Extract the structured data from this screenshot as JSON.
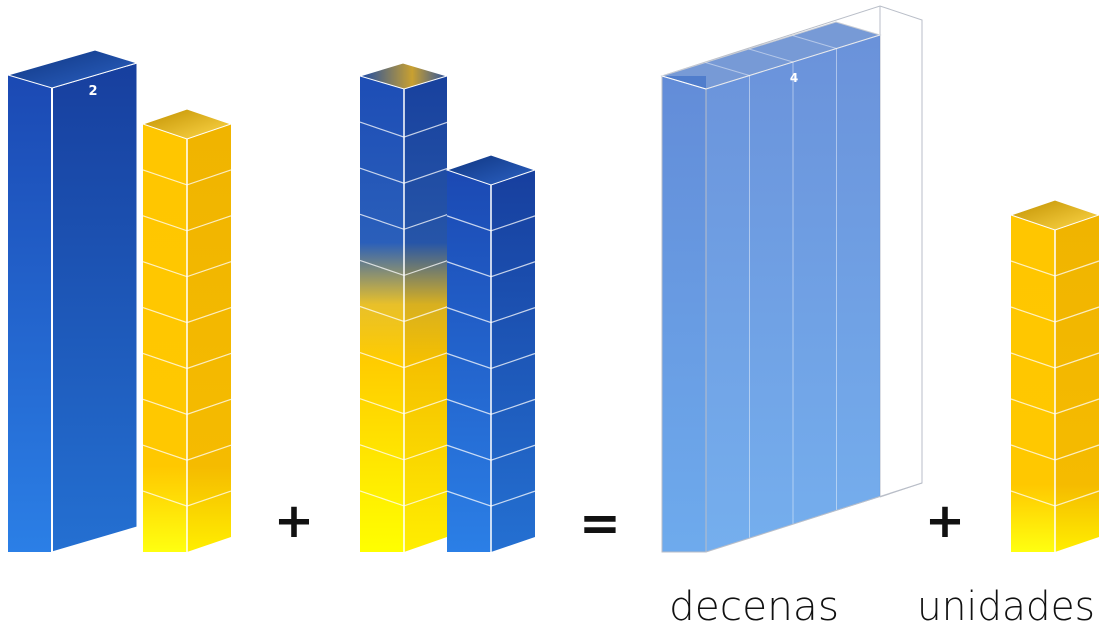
{
  "colors": {
    "blue_top": "#1e4fb8",
    "blue_bottom": "#2a7be0",
    "yellow_top": "#ffc400",
    "yellow_bottom": "#ffff00",
    "translucent_blue": "#5b8fe0",
    "operator": "#111111"
  },
  "addend_1": {
    "ten_rod_label": "2",
    "unit_cubes": 9
  },
  "addend_2": {
    "mixed_column_cubes": 10,
    "blue_column_cubes": 8
  },
  "operators": {
    "plus_1": "+",
    "equals": "=",
    "plus_2": "+"
  },
  "result": {
    "tens_label": "4",
    "tens_columns": 4,
    "units_cubes": 7
  },
  "labels": {
    "tens": "decenas",
    "units": "unidades"
  }
}
